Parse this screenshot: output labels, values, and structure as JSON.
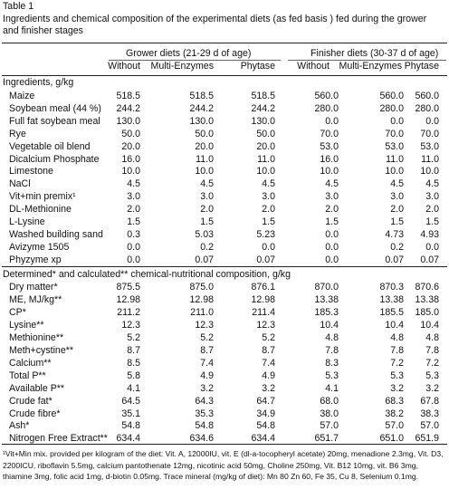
{
  "caption": {
    "label": "Table 1",
    "title": "Ingredients and chemical composition of the experimental diets (as fed basis ) fed during the grower and finisher stages"
  },
  "groups": [
    {
      "label": "Grower diets (21-29 d of age)"
    },
    {
      "label": "Finisher diets (30-37 d of age)"
    }
  ],
  "columns": [
    "Without",
    "Multi-Enzymes",
    "Phytase",
    "Without",
    "Multi-Enzymes",
    "Phytase"
  ],
  "sections": {
    "ingredients": "Ingredients, g/kg",
    "determined": "Determined* and calculated** chemical-nutritional composition, g/kg"
  },
  "ingredients": [
    {
      "label": "Maize",
      "values": [
        "518.5",
        "518.5",
        "518.5",
        "560.0",
        "560.0",
        "560.0"
      ]
    },
    {
      "label": "Soybean meal (44 %)",
      "values": [
        "244.2",
        "244.2",
        "244.2",
        "280.0",
        "280.0",
        "280.0"
      ]
    },
    {
      "label": "Full fat soybean meal",
      "values": [
        "130.0",
        "130.0",
        "130.0",
        "0.0",
        "0.0",
        "0.0"
      ]
    },
    {
      "label": "Rye",
      "values": [
        "50.0",
        "50.0",
        "50.0",
        "70.0",
        "70.0",
        "70.0"
      ]
    },
    {
      "label": "Vegetable oil blend",
      "values": [
        "20.0",
        "20.0",
        "20.0",
        "53.0",
        "53.0",
        "53.0"
      ]
    },
    {
      "label": "Dicalcium Phosphate",
      "values": [
        "16.0",
        "11.0",
        "11.0",
        "16.0",
        "11.0",
        "11.0"
      ]
    },
    {
      "label": "Limestone",
      "values": [
        "10.0",
        "10.0",
        "10.0",
        "10.0",
        "10.0",
        "10.0"
      ]
    },
    {
      "label": "NaCl",
      "values": [
        "4.5",
        "4.5",
        "4.5",
        "4.5",
        "4.5",
        "4.5"
      ]
    },
    {
      "label": "Vit+min premix¹",
      "values": [
        "3.0",
        "3.0",
        "3.0",
        "3.0",
        "3.0",
        "3.0"
      ]
    },
    {
      "label": "DL-Methionine",
      "values": [
        "2.0",
        "2.0",
        "2.0",
        "2.0",
        "2.0",
        "2.0"
      ]
    },
    {
      "label": "L-Lysine",
      "values": [
        "1.5",
        "1.5",
        "1.5",
        "1.5",
        "1.5",
        "1.5"
      ]
    },
    {
      "label": "Washed building sand",
      "values": [
        "0.3",
        "5.03",
        "5.23",
        "0.0",
        "4.73",
        "4.93"
      ]
    },
    {
      "label": "Avizyme 1505",
      "values": [
        "0.0",
        "0.2",
        "0.0",
        "0.0",
        "0.2",
        "0.0"
      ]
    },
    {
      "label": "Phyzyme xp",
      "values": [
        "0.0",
        "0.07",
        "0.07",
        "0.0",
        "0.07",
        "0.07"
      ]
    }
  ],
  "composition": [
    {
      "label": "Dry matter*",
      "values": [
        "875.5",
        "875.0",
        "876.1",
        "870.0",
        "870.3",
        "870.6"
      ]
    },
    {
      "label": "ME, MJ/kg**",
      "values": [
        "12.98",
        "12.98",
        "12.98",
        "13.38",
        "13.38",
        "13.38"
      ]
    },
    {
      "label": "CP*",
      "values": [
        "211.2",
        "211.0",
        "211.4",
        "185.3",
        "185.5",
        "185.0"
      ]
    },
    {
      "label": "Lysine**",
      "values": [
        "12.3",
        "12.3",
        "12.3",
        "10.4",
        "10.4",
        "10.4"
      ]
    },
    {
      "label": "Methionine**",
      "values": [
        "5.2",
        "5.2",
        "5.2",
        "4.8",
        "4.8",
        "4.8"
      ]
    },
    {
      "label": "Meth+cystine**",
      "values": [
        "8.7",
        "8.7",
        "8.7",
        "7.8",
        "7.8",
        "7.8"
      ]
    },
    {
      "label": "Calcium**",
      "values": [
        "8.5",
        "7.4",
        "7.4",
        "8.3",
        "7.2",
        "7.2"
      ]
    },
    {
      "label": "Total P**",
      "values": [
        "5.8",
        "4.9",
        "4.9",
        "5.3",
        "5.3",
        "5.3"
      ]
    },
    {
      "label": "Available P**",
      "values": [
        "4.1",
        "3.2",
        "3.2",
        "4.1",
        "3.2",
        "3.2"
      ]
    },
    {
      "label": "Crude fat*",
      "values": [
        "64.5",
        "64.3",
        "64.7",
        "68.0",
        "68.3",
        "67.8"
      ]
    },
    {
      "label": "Crude fibre*",
      "values": [
        "35.1",
        "35.3",
        "34.9",
        "38.0",
        "38.2",
        "38.3"
      ]
    },
    {
      "label": "Ash*",
      "values": [
        "54.8",
        "54.8",
        "54.8",
        "57.0",
        "57.0",
        "57.0"
      ]
    },
    {
      "label": "Nitrogen Free Extract**",
      "values": [
        "634.4",
        "634.6",
        "634.4",
        "651.7",
        "651.0",
        "651.9"
      ]
    }
  ],
  "footnote": "¹Vit+Min mix. provided per kilogram of the diet: Vit. A, 12000IU, vit. E (dl-a-tocopheryl acetate) 20mg, menadione 2.3mg, Vit. D3, 2200ICU, riboflavin 5.5mg, calcium pantothenate 12mg, nicotinic acid 50mg, Choline 250mg, Vit. B12 10mg, vit. B6 3mg, thiamine 3mg, folic acid 1mg, d-biotin 0.05mg. Trace mineral (mg/kg of diet): Mn 80 Zn 60, Fe 35, Cu 8, Selenium 0.1mg."
}
